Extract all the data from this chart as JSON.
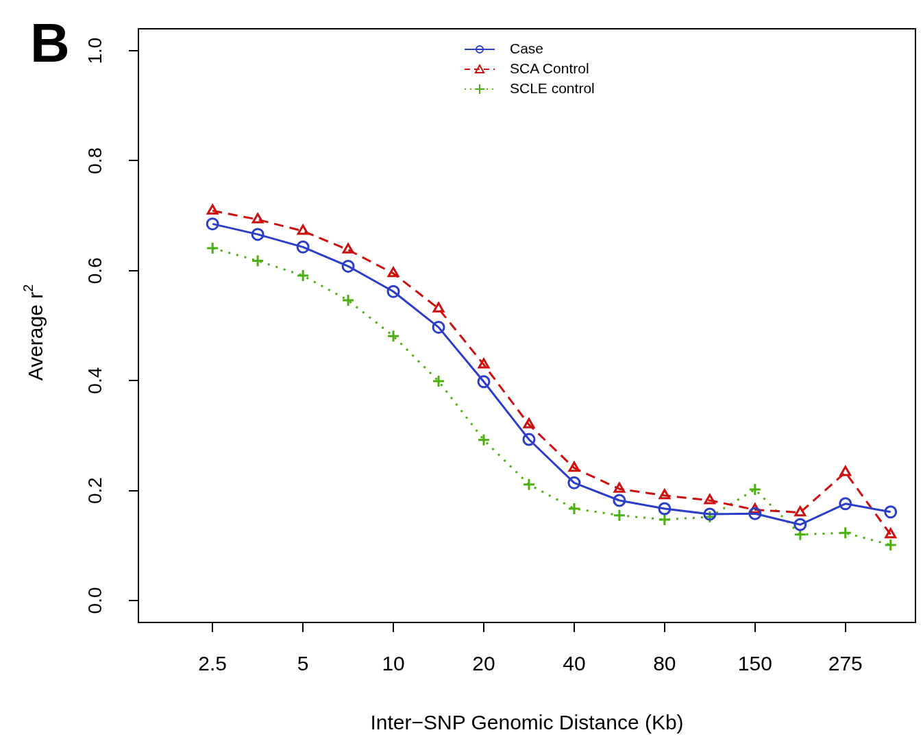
{
  "chart_data": {
    "type": "line",
    "xlabel": "Inter−SNP Genomic Distance (Kb)",
    "ylabel": "Average r$^{2}$",
    "categories": [
      "2.5",
      null,
      "5",
      null,
      "10",
      null,
      "20",
      null,
      "40",
      null,
      "80",
      null,
      "150",
      null,
      "275",
      null
    ],
    "series": [
      {
        "name": "Case",
        "color": "#2b3ec8",
        "marker": "circle",
        "line_style": "solid",
        "values": [
          0.685,
          0.666,
          0.643,
          0.608,
          0.562,
          0.497,
          0.398,
          0.293,
          0.214,
          0.182,
          0.167,
          0.157,
          0.158,
          0.138,
          0.176,
          0.161
        ]
      },
      {
        "name": "SCA Control",
        "color": "#cc1010",
        "marker": "triangle",
        "line_style": "dashed",
        "values": [
          0.709,
          0.693,
          0.672,
          0.638,
          0.595,
          0.531,
          0.429,
          0.32,
          0.241,
          0.203,
          0.191,
          0.182,
          0.165,
          0.16,
          0.233,
          0.12
        ]
      },
      {
        "name": "SCLE control",
        "color": "#4caf10",
        "marker": "cross",
        "line_style": "dotted",
        "values": [
          0.641,
          0.618,
          0.591,
          0.546,
          0.481,
          0.399,
          0.292,
          0.211,
          0.167,
          0.155,
          0.147,
          0.152,
          0.202,
          0.12,
          0.123,
          0.101
        ]
      }
    ],
    "ylim": [
      -0.04,
      1.04
    ],
    "yticks": [
      {
        "value": 0,
        "label": "0.0"
      },
      0.2,
      0.4,
      0.6,
      0.8,
      {
        "value": 1,
        "label": "1.0"
      }
    ],
    "grid": false,
    "legend": "top",
    "annotations": [
      "B"
    ]
  }
}
